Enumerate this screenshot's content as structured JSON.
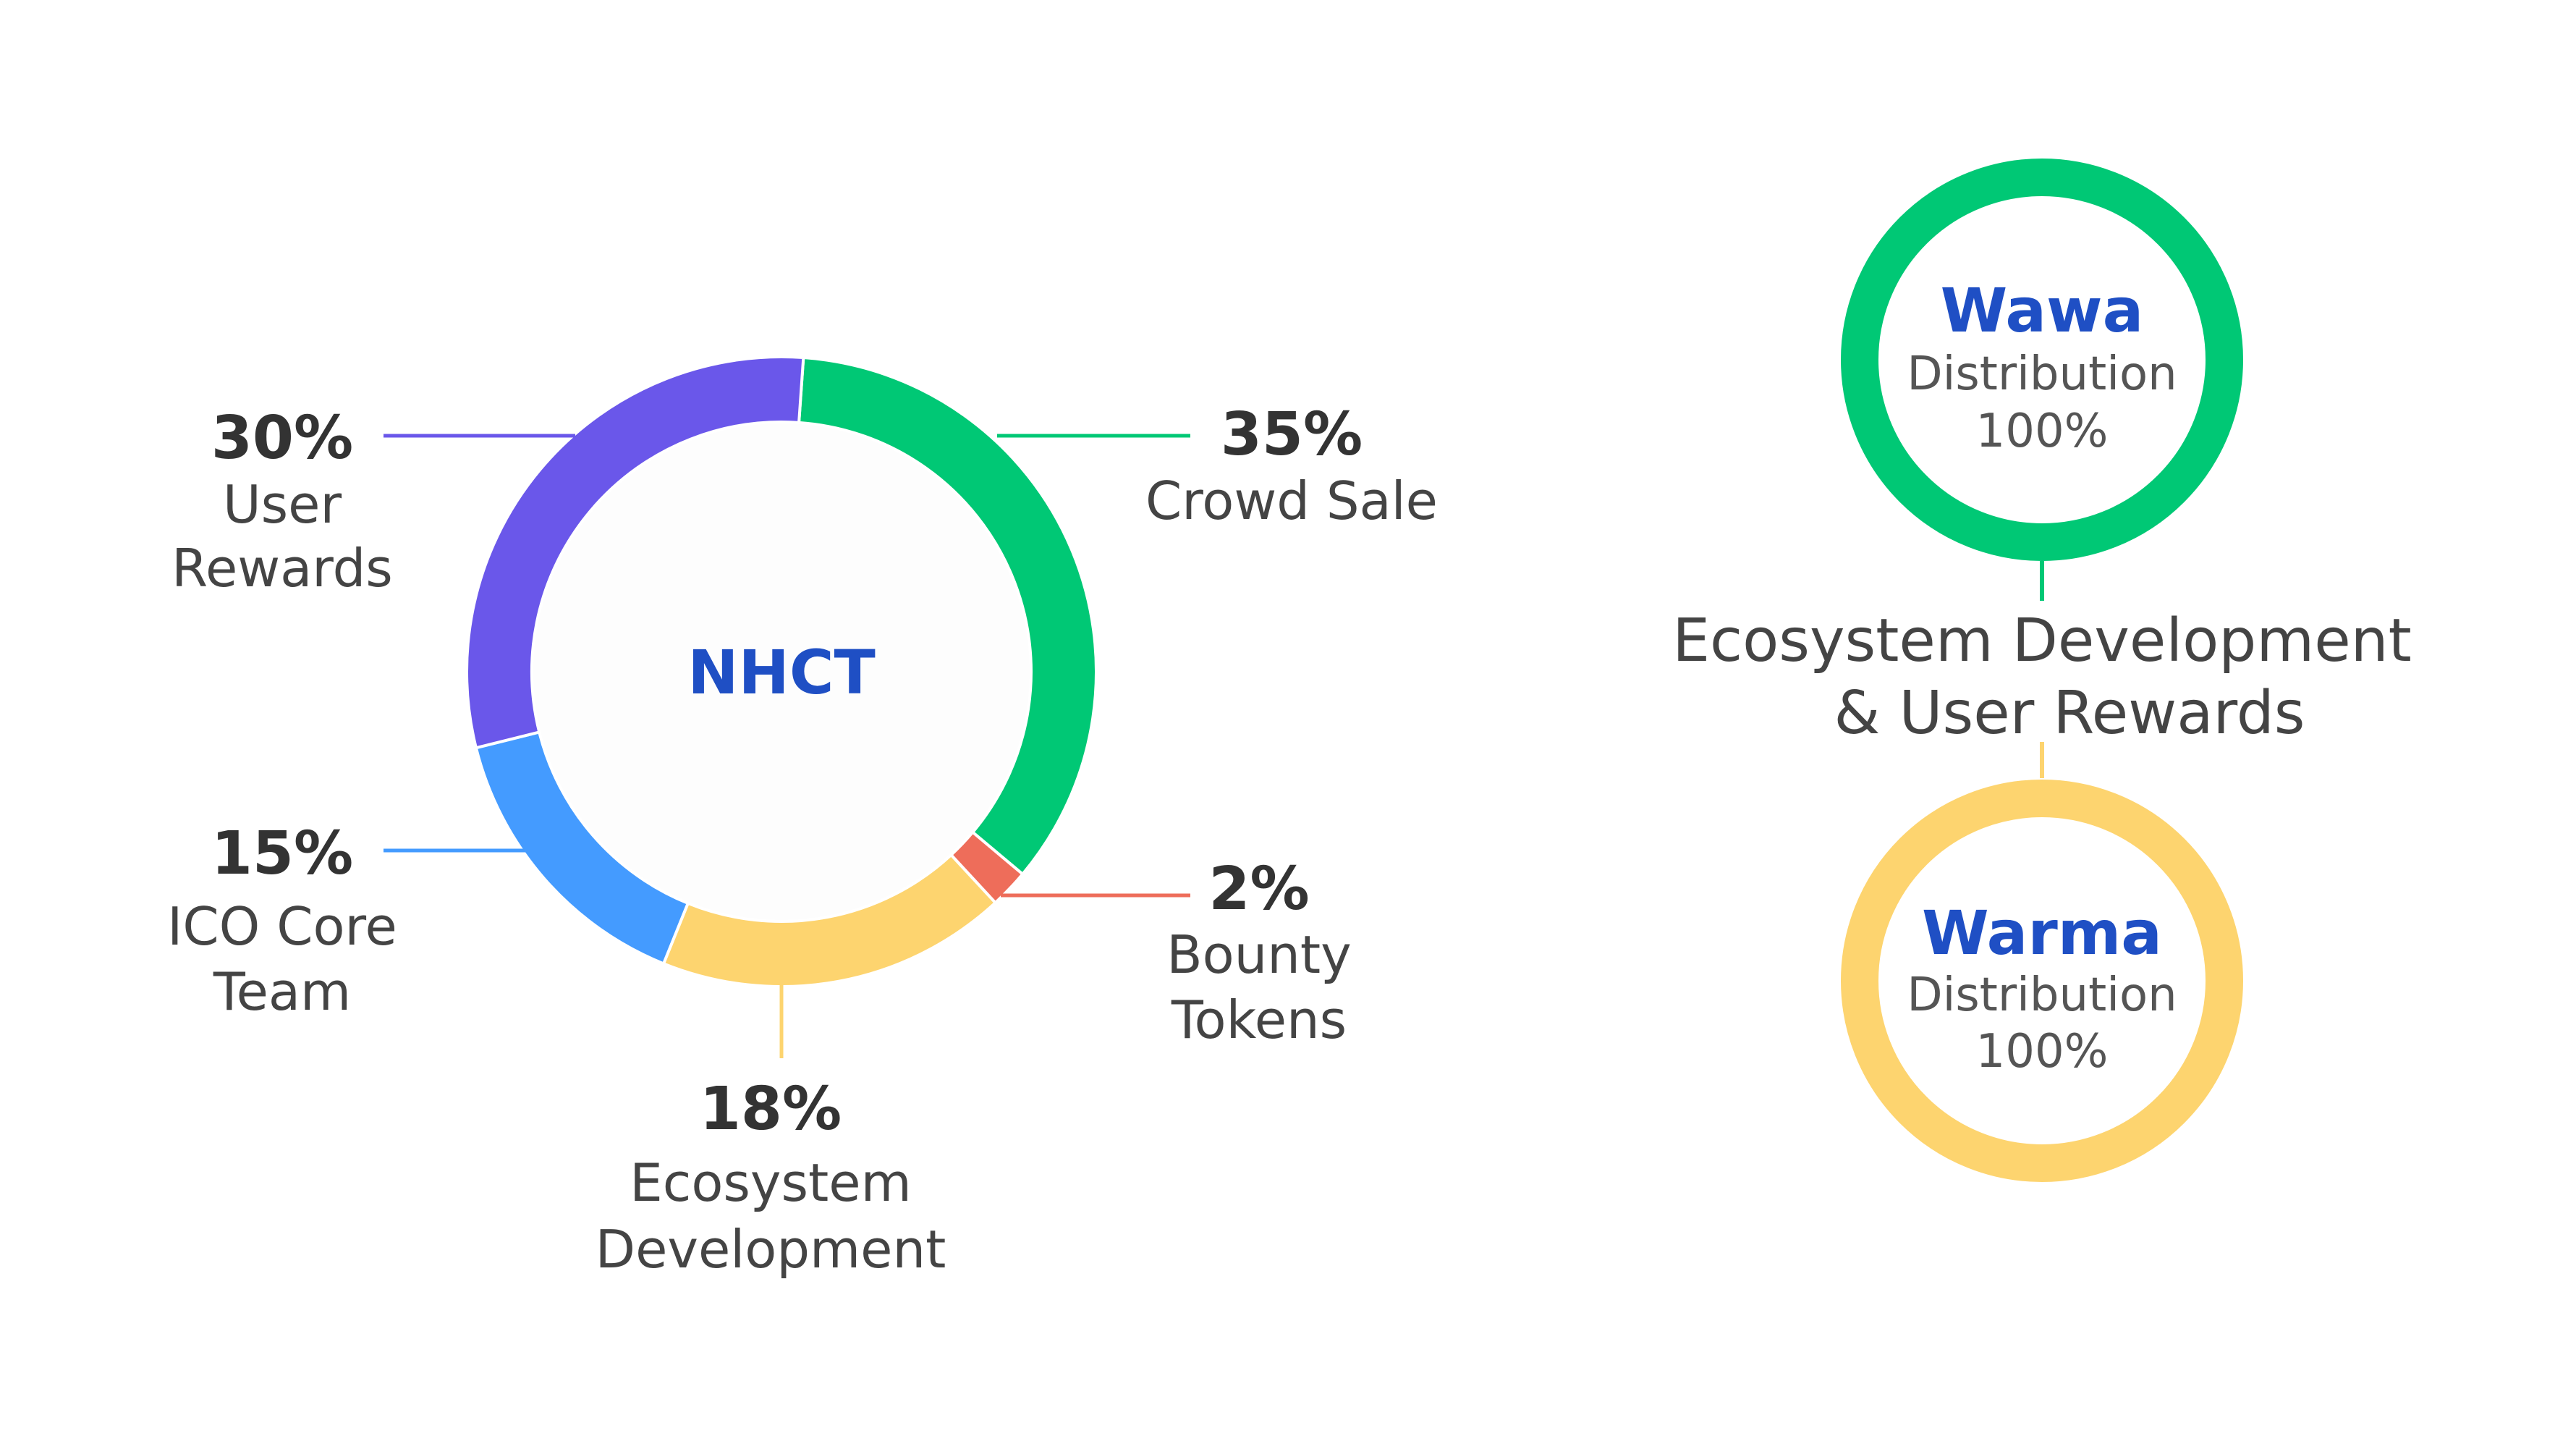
{
  "chart_data": [
    {
      "type": "pie",
      "center_label": "NHCT",
      "slices": [
        {
          "pct_text": "35%",
          "label_lines": [
            "Crowd Sale"
          ],
          "value": 35,
          "color": "#00c875"
        },
        {
          "pct_text": "2%",
          "label_lines": [
            "Bounty",
            "Tokens"
          ],
          "value": 2,
          "color": "#ee6d5a"
        },
        {
          "pct_text": "18%",
          "label_lines": [
            "Ecosystem",
            "Development"
          ],
          "value": 18,
          "color": "#fdd46f"
        },
        {
          "pct_text": "15%",
          "label_lines": [
            "ICO Core",
            "Team"
          ],
          "value": 15,
          "color": "#449bff"
        },
        {
          "pct_text": "30%",
          "label_lines": [
            "User",
            "Rewards"
          ],
          "value": 30,
          "color": "#6a57ea"
        }
      ]
    },
    {
      "type": "pie",
      "rings": [
        {
          "title": "Wawa",
          "subtitle": "Distribution",
          "value_text": "100%",
          "value": 100,
          "color": "#00c875"
        },
        {
          "title": "Warma",
          "subtitle": "Distribution",
          "value_text": "100%",
          "value": 100,
          "color": "#fdd46f"
        }
      ],
      "shared_label_lines": [
        "Ecosystem Development",
        "& User Rewards"
      ]
    }
  ]
}
